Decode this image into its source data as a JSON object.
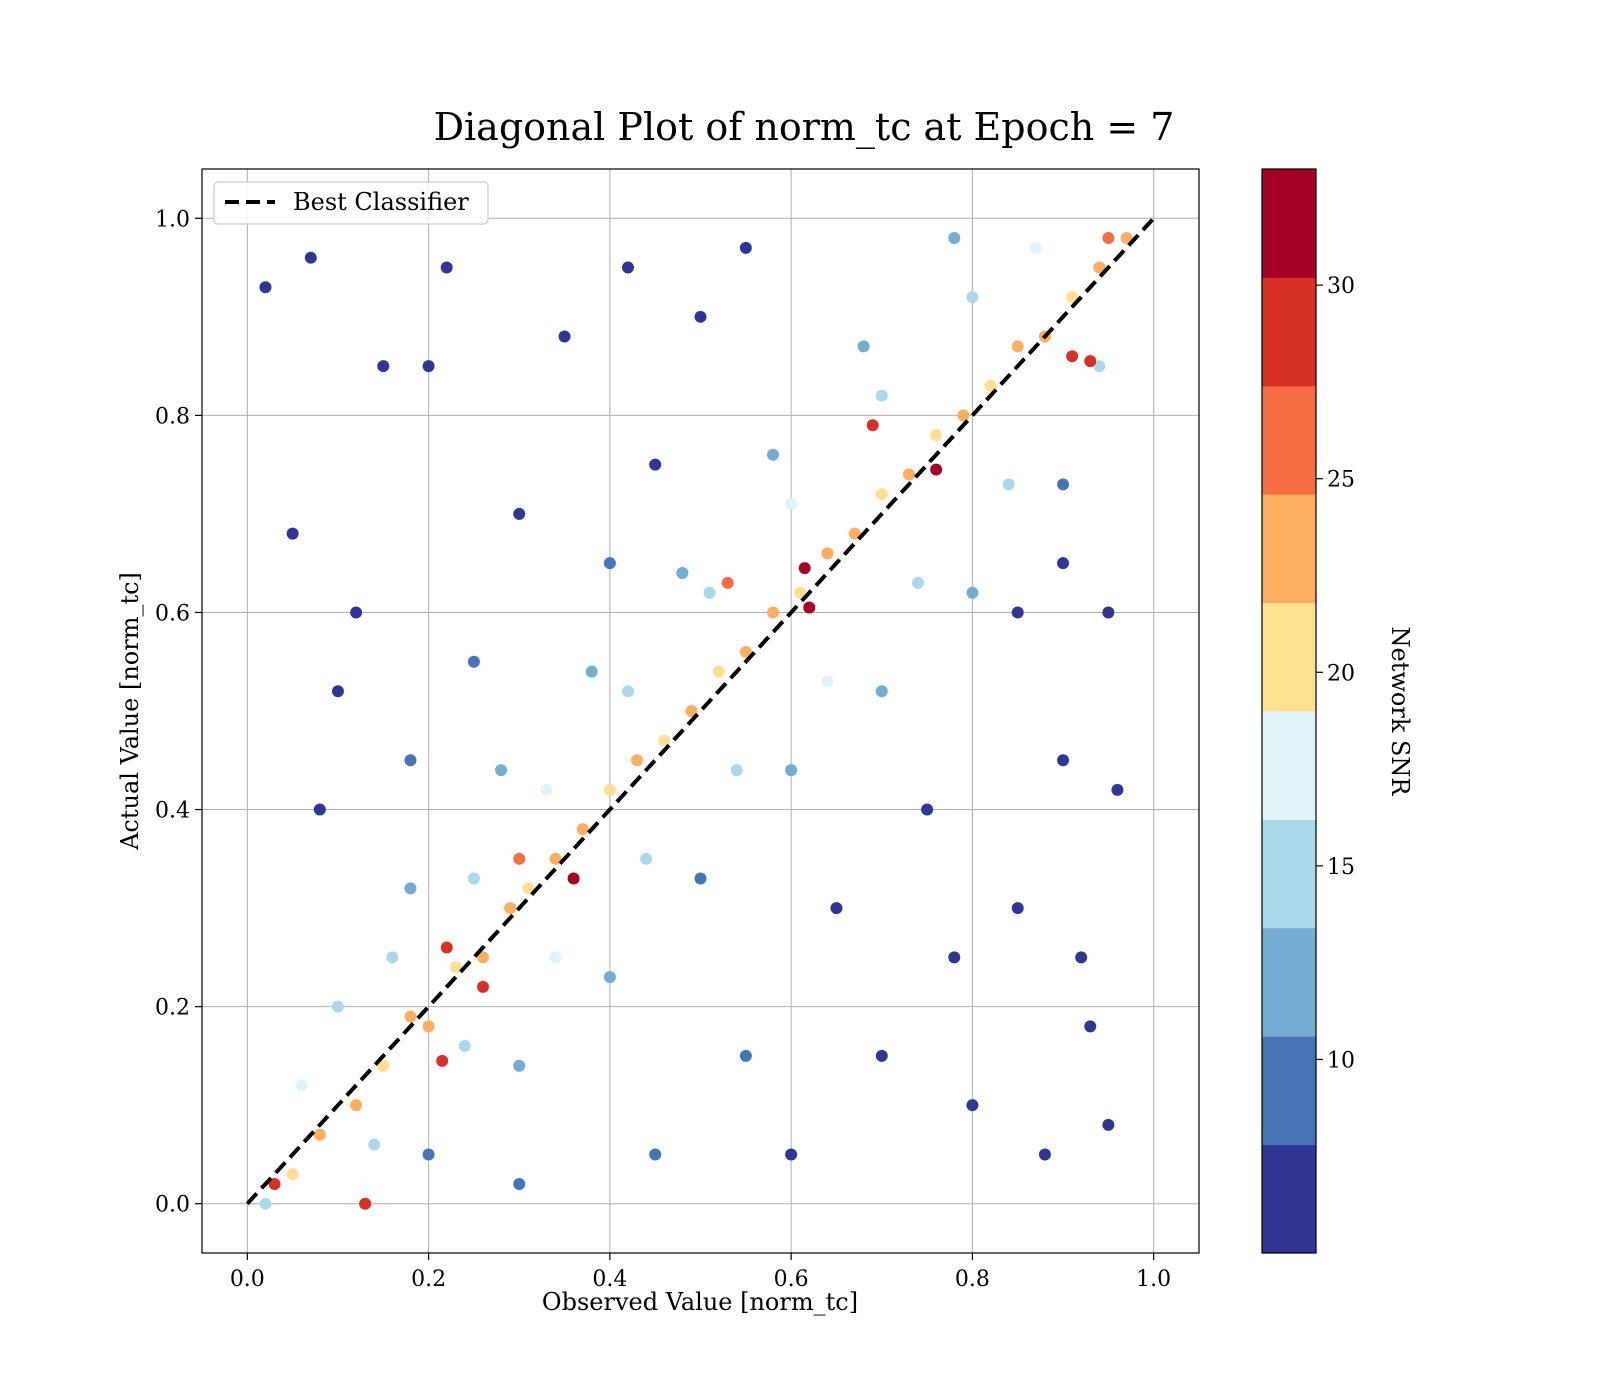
{
  "chart_data": {
    "type": "scatter",
    "title": "Diagonal Plot of norm_tc at Epoch = 7",
    "xlabel": "Observed Value [norm_tc]",
    "ylabel": "Actual Value [norm_tc]",
    "xlim": [
      -0.05,
      1.05
    ],
    "ylim": [
      -0.05,
      1.05
    ],
    "xticks": [
      "0.0",
      "0.2",
      "0.4",
      "0.6",
      "0.8",
      "1.0"
    ],
    "yticks": [
      "0.0",
      "0.2",
      "0.4",
      "0.6",
      "0.8",
      "1.0"
    ],
    "grid": true,
    "legend": {
      "position": "top-left",
      "entries": [
        "Best Classifier"
      ]
    },
    "reference_line": {
      "name": "Best Classifier",
      "style": "dashed",
      "color": "#000000",
      "x": [
        0.0,
        1.0
      ],
      "y": [
        0.0,
        1.0
      ]
    },
    "colorbar": {
      "label": "Network SNR",
      "range": [
        5,
        33
      ],
      "ticks": [
        "10",
        "15",
        "20",
        "25",
        "30"
      ],
      "bins": [
        {
          "from": 5.0,
          "to": 7.8,
          "color": "#313695"
        },
        {
          "from": 7.8,
          "to": 10.6,
          "color": "#4575b4"
        },
        {
          "from": 10.6,
          "to": 13.4,
          "color": "#74add1"
        },
        {
          "from": 13.4,
          "to": 16.2,
          "color": "#abd9e9"
        },
        {
          "from": 16.2,
          "to": 19.0,
          "color": "#e0f3f8"
        },
        {
          "from": 19.0,
          "to": 21.8,
          "color": "#fee090"
        },
        {
          "from": 21.8,
          "to": 24.6,
          "color": "#fdae61"
        },
        {
          "from": 24.6,
          "to": 27.4,
          "color": "#f46d43"
        },
        {
          "from": 27.4,
          "to": 30.2,
          "color": "#d73027"
        },
        {
          "from": 30.2,
          "to": 33.0,
          "color": "#a50026"
        }
      ]
    },
    "series": [
      {
        "points": [
          [
            0.02,
            0.0
          ],
          [
            0.05,
            0.03
          ],
          [
            0.08,
            0.07
          ],
          [
            0.12,
            0.1
          ],
          [
            0.15,
            0.14
          ],
          [
            0.18,
            0.19
          ],
          [
            0.2,
            0.18
          ],
          [
            0.23,
            0.24
          ],
          [
            0.26,
            0.25
          ],
          [
            0.29,
            0.3
          ],
          [
            0.31,
            0.32
          ],
          [
            0.34,
            0.35
          ],
          [
            0.37,
            0.38
          ],
          [
            0.4,
            0.42
          ],
          [
            0.43,
            0.45
          ],
          [
            0.46,
            0.47
          ],
          [
            0.49,
            0.5
          ],
          [
            0.52,
            0.54
          ],
          [
            0.55,
            0.56
          ],
          [
            0.58,
            0.6
          ],
          [
            0.61,
            0.62
          ],
          [
            0.64,
            0.66
          ],
          [
            0.67,
            0.68
          ],
          [
            0.7,
            0.72
          ],
          [
            0.73,
            0.74
          ],
          [
            0.76,
            0.78
          ],
          [
            0.79,
            0.8
          ],
          [
            0.82,
            0.83
          ],
          [
            0.85,
            0.87
          ],
          [
            0.88,
            0.88
          ],
          [
            0.91,
            0.92
          ],
          [
            0.94,
            0.95
          ],
          [
            0.97,
            0.98
          ],
          [
            0.03,
            0.02
          ],
          [
            0.13,
            0.0
          ],
          [
            0.22,
            0.26
          ],
          [
            0.36,
            0.33
          ],
          [
            0.53,
            0.63
          ],
          [
            0.615,
            0.645
          ],
          [
            0.62,
            0.605
          ],
          [
            0.69,
            0.79
          ],
          [
            0.76,
            0.745
          ],
          [
            0.91,
            0.86
          ],
          [
            0.93,
            0.855
          ],
          [
            0.95,
            0.98
          ],
          [
            0.26,
            0.22
          ],
          [
            0.215,
            0.145
          ],
          [
            0.3,
            0.35
          ],
          [
            0.1,
            0.2
          ],
          [
            0.06,
            0.12
          ],
          [
            0.16,
            0.25
          ],
          [
            0.25,
            0.33
          ],
          [
            0.33,
            0.42
          ],
          [
            0.42,
            0.52
          ],
          [
            0.51,
            0.62
          ],
          [
            0.6,
            0.71
          ],
          [
            0.7,
            0.82
          ],
          [
            0.8,
            0.92
          ],
          [
            0.87,
            0.97
          ],
          [
            0.14,
            0.06
          ],
          [
            0.24,
            0.16
          ],
          [
            0.34,
            0.25
          ],
          [
            0.44,
            0.35
          ],
          [
            0.54,
            0.44
          ],
          [
            0.64,
            0.53
          ],
          [
            0.74,
            0.63
          ],
          [
            0.84,
            0.73
          ],
          [
            0.94,
            0.85
          ],
          [
            0.18,
            0.32
          ],
          [
            0.28,
            0.44
          ],
          [
            0.38,
            0.54
          ],
          [
            0.48,
            0.64
          ],
          [
            0.58,
            0.76
          ],
          [
            0.68,
            0.87
          ],
          [
            0.78,
            0.98
          ],
          [
            0.2,
            0.05
          ],
          [
            0.3,
            0.14
          ],
          [
            0.4,
            0.23
          ],
          [
            0.5,
            0.33
          ],
          [
            0.6,
            0.44
          ],
          [
            0.7,
            0.52
          ],
          [
            0.8,
            0.62
          ],
          [
            0.9,
            0.73
          ],
          [
            0.08,
            0.4
          ],
          [
            0.12,
            0.6
          ],
          [
            0.15,
            0.85
          ],
          [
            0.22,
            0.95
          ],
          [
            0.3,
            0.7
          ],
          [
            0.35,
            0.88
          ],
          [
            0.42,
            0.95
          ],
          [
            0.45,
            0.75
          ],
          [
            0.5,
            0.9
          ],
          [
            0.55,
            0.97
          ],
          [
            0.4,
            0.65
          ],
          [
            0.25,
            0.55
          ],
          [
            0.18,
            0.45
          ],
          [
            0.6,
            0.05
          ],
          [
            0.7,
            0.15
          ],
          [
            0.8,
            0.1
          ],
          [
            0.85,
            0.3
          ],
          [
            0.9,
            0.45
          ],
          [
            0.95,
            0.6
          ],
          [
            0.65,
            0.3
          ],
          [
            0.75,
            0.4
          ],
          [
            0.55,
            0.15
          ],
          [
            0.88,
            0.05
          ],
          [
            0.92,
            0.25
          ],
          [
            0.96,
            0.42
          ],
          [
            0.45,
            0.05
          ],
          [
            0.02,
            0.93
          ],
          [
            0.05,
            0.68
          ],
          [
            0.07,
            0.96
          ],
          [
            0.1,
            0.52
          ],
          [
            0.2,
            0.85
          ],
          [
            0.95,
            0.08
          ],
          [
            0.93,
            0.18
          ],
          [
            0.9,
            0.65
          ],
          [
            0.85,
            0.6
          ],
          [
            0.78,
            0.25
          ],
          [
            0.3,
            0.02
          ]
        ],
        "snr": [
          16,
          21,
          23,
          22,
          20,
          23,
          24,
          21,
          22,
          23,
          20,
          22,
          23,
          21,
          22,
          20,
          23,
          21,
          22,
          24,
          20,
          22,
          23,
          21,
          22,
          20,
          23,
          21,
          22,
          24,
          20,
          22,
          23,
          28,
          28,
          28,
          31,
          27,
          32,
          31,
          28,
          31,
          29,
          28,
          27,
          29,
          28,
          27,
          15,
          17,
          16,
          15,
          17,
          16,
          15,
          17,
          16,
          15,
          17,
          15,
          16,
          17,
          15,
          16,
          17,
          15,
          16,
          15,
          11,
          12,
          11,
          12,
          11,
          12,
          11,
          10,
          11,
          12,
          10,
          11,
          12,
          11,
          10,
          7,
          6,
          7,
          6,
          6,
          7,
          6,
          7,
          6,
          7,
          8,
          9,
          8,
          6,
          7,
          6,
          7,
          6,
          7,
          7,
          6,
          8,
          6,
          7,
          6,
          8,
          6,
          6,
          6,
          6,
          7,
          6,
          6,
          6,
          6,
          7,
          9
        ]
      }
    ]
  }
}
